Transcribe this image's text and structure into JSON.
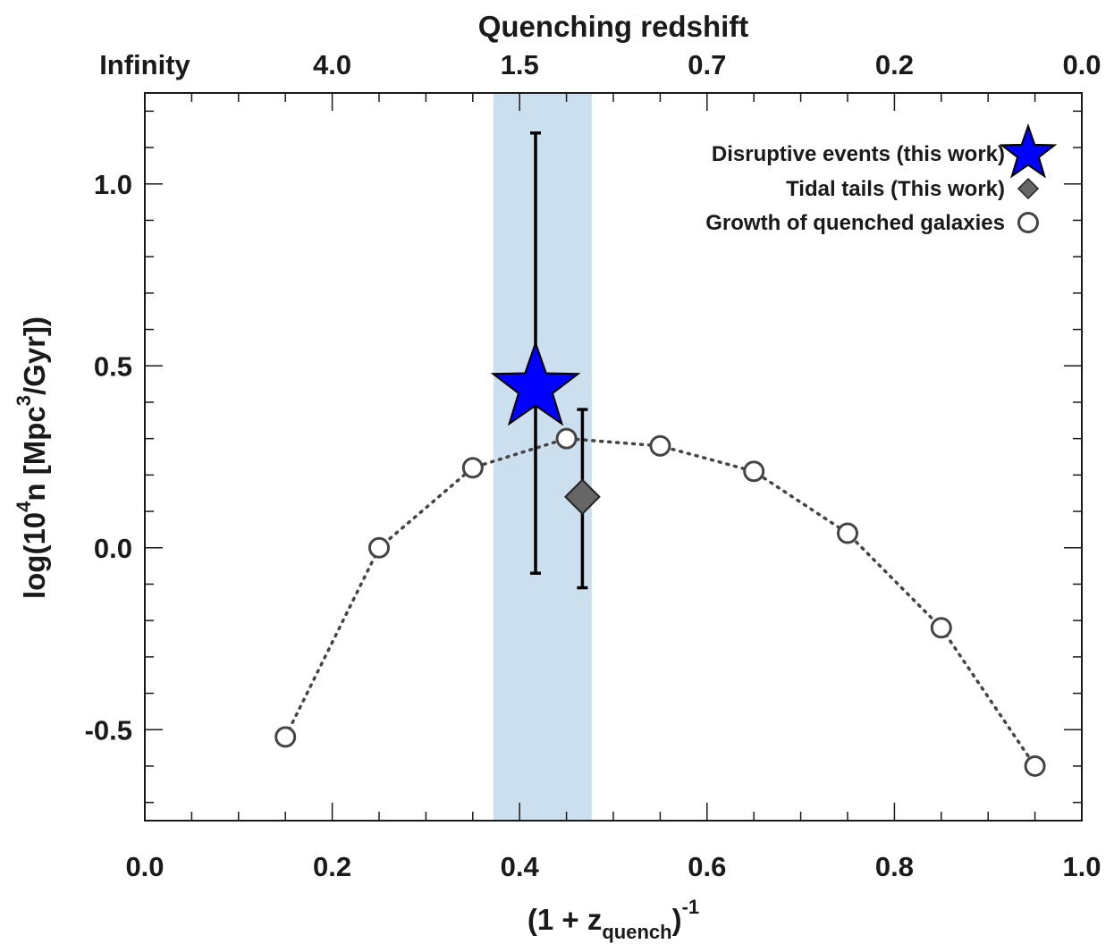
{
  "chart_data": {
    "type": "scatter",
    "xlabel": {
      "base": "(1 + z",
      "sub": "quench",
      "close": ")",
      "sup": "-1"
    },
    "ylabel": {
      "pre": "log(10",
      "sup1": "4",
      "mid": "n [Mpc",
      "sup2": "3",
      "post": "/Gyr])"
    },
    "top_axis_title": "Quenching redshift",
    "xlim": [
      0.0,
      1.0
    ],
    "ylim": [
      -0.75,
      1.25
    ],
    "x_ticks": [
      {
        "value": 0.0,
        "label": "0.0"
      },
      {
        "value": 0.2,
        "label": "0.2"
      },
      {
        "value": 0.4,
        "label": "0.4"
      },
      {
        "value": 0.6,
        "label": "0.6"
      },
      {
        "value": 0.8,
        "label": "0.8"
      },
      {
        "value": 1.0,
        "label": "1.0"
      }
    ],
    "x_minor_step": 0.05,
    "y_ticks": [
      {
        "value": -0.5,
        "label": "-0.5"
      },
      {
        "value": 0.0,
        "label": "0.0"
      },
      {
        "value": 0.5,
        "label": "0.5"
      },
      {
        "value": 1.0,
        "label": "1.0"
      }
    ],
    "y_minor_step": 0.1,
    "top_ticks": [
      {
        "value": 0.0,
        "label": "Infinity"
      },
      {
        "value": 0.2,
        "label": "4.0"
      },
      {
        "value": 0.4,
        "label": "1.5"
      },
      {
        "value": 0.6,
        "label": "0.7"
      },
      {
        "value": 0.8,
        "label": "0.2"
      },
      {
        "value": 1.0,
        "label": "0.0"
      }
    ],
    "band": {
      "x0": 0.372,
      "x1": 0.477,
      "color": "#ccdfef"
    },
    "series": [
      {
        "name": "Growth of quenched galaxies",
        "marker": "open-circle",
        "line": "dotted",
        "color": "#444444",
        "x": [
          0.15,
          0.25,
          0.35,
          0.45,
          0.55,
          0.65,
          0.75,
          0.85,
          0.95
        ],
        "y": [
          -0.52,
          0.0,
          0.22,
          0.3,
          0.28,
          0.21,
          0.04,
          -0.22,
          -0.6
        ]
      },
      {
        "name": "Disruptive events (this work)",
        "marker": "star",
        "color": "#0000ff",
        "x": [
          0.417
        ],
        "y": [
          0.44
        ],
        "yerr_low": [
          -0.07
        ],
        "yerr_high": [
          1.14
        ]
      },
      {
        "name": "Tidal tails (This work)",
        "marker": "diamond",
        "color": "#666666",
        "x": [
          0.467
        ],
        "y": [
          0.14
        ],
        "yerr_low": [
          -0.11
        ],
        "yerr_high": [
          0.38
        ]
      }
    ],
    "legend": {
      "position": "top-right",
      "entries": [
        {
          "label": "Disruptive events (this work)",
          "marker": "star"
        },
        {
          "label": "Tidal tails (This work)",
          "marker": "diamond"
        },
        {
          "label": "Growth of quenched galaxies",
          "marker": "open-circle"
        }
      ]
    },
    "grid": false
  }
}
